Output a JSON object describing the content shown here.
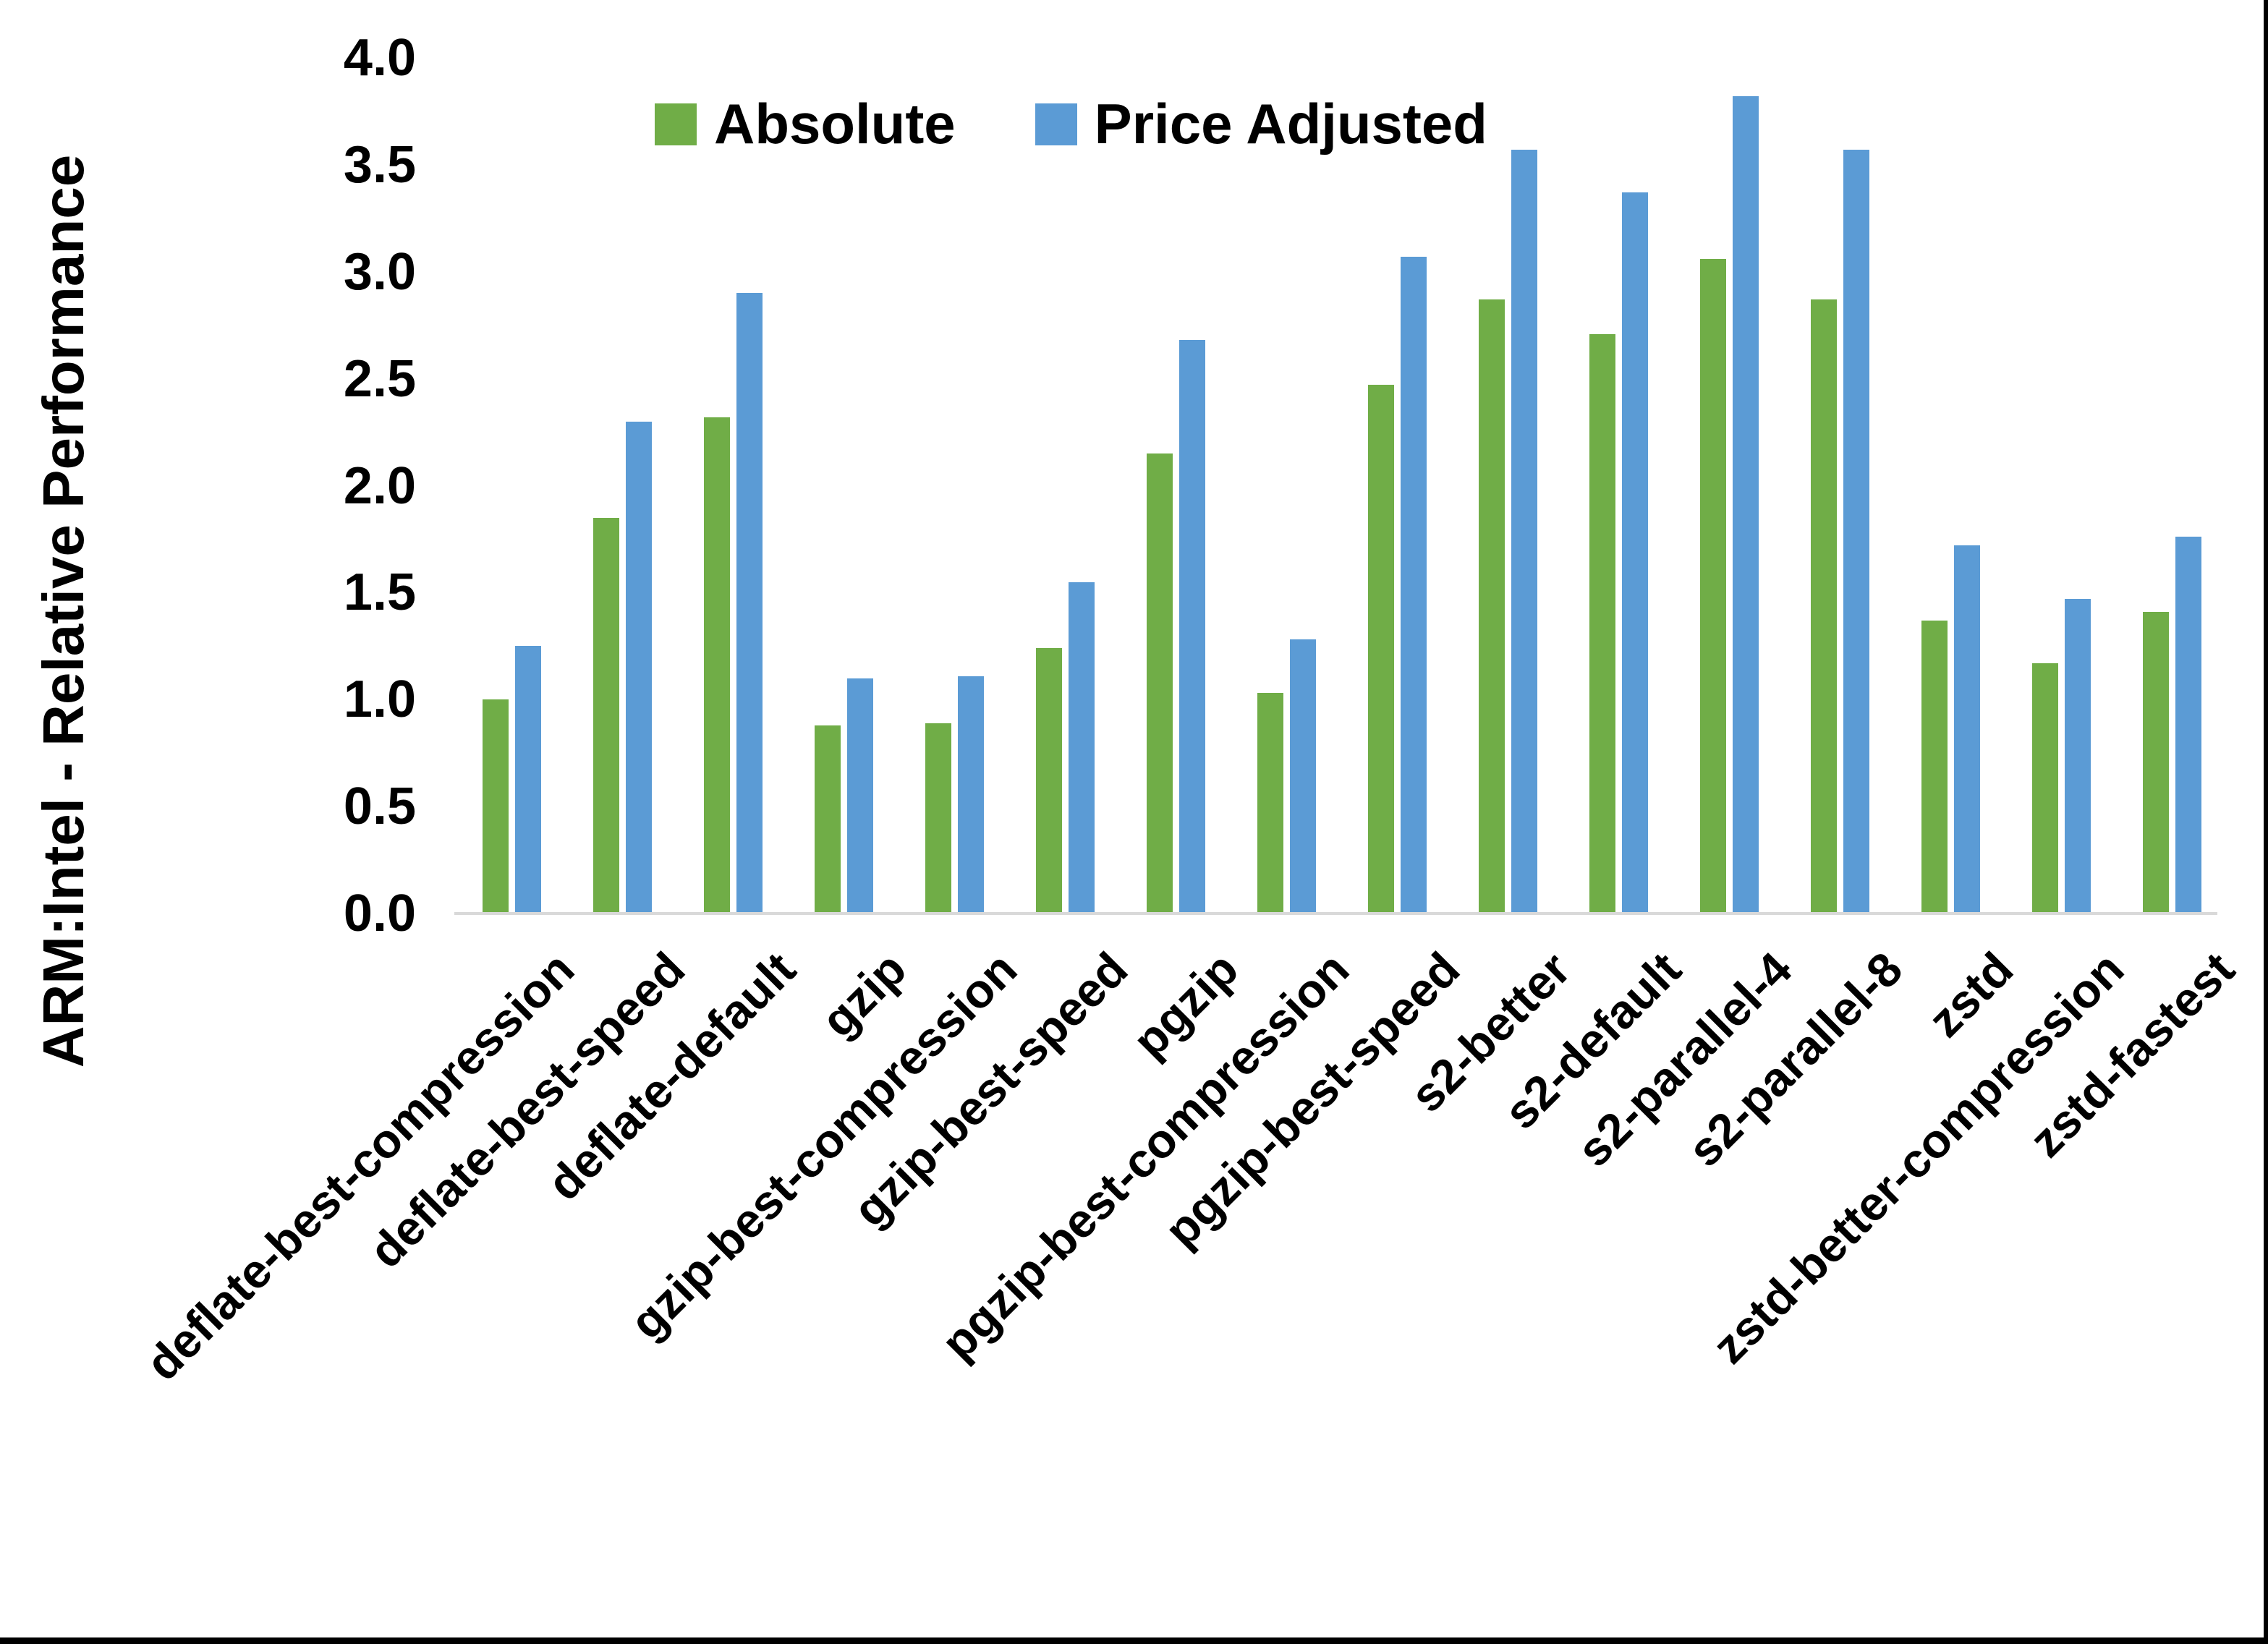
{
  "chart_data": {
    "type": "bar",
    "title": "",
    "ylabel": "ARM:Intel - Relative Performance",
    "xlabel": "",
    "ylim": [
      0.0,
      4.0
    ],
    "ytick_step": 0.5,
    "ytick_labels": [
      "0.0",
      "0.5",
      "1.0",
      "1.5",
      "2.0",
      "2.5",
      "3.0",
      "3.5",
      "4.0"
    ],
    "grid": false,
    "legend_position": "top-center",
    "categories": [
      "deflate-best-compression",
      "deflate-best-speed",
      "deflate-default",
      "gzip",
      "gzip-best-compression",
      "gzip-best-speed",
      "pgzip",
      "pgzip-best-compression",
      "pgzip-best-speed",
      "s2-better",
      "s2-default",
      "s2-parallel-4",
      "s2-parallel-8",
      "zstd",
      "zstd-better-compression",
      "zstd-fastest"
    ],
    "series": [
      {
        "name": "Absolute",
        "color": "#70AD47",
        "values": [
          1.0,
          1.85,
          2.32,
          0.88,
          0.89,
          1.24,
          2.15,
          1.03,
          2.47,
          2.87,
          2.71,
          3.06,
          2.87,
          1.37,
          1.17,
          1.41
        ]
      },
      {
        "name": "Price Adjusted",
        "color": "#5B9BD5",
        "values": [
          1.25,
          2.3,
          2.9,
          1.1,
          1.11,
          1.55,
          2.68,
          1.28,
          3.07,
          3.57,
          3.37,
          3.82,
          3.57,
          1.72,
          1.47,
          1.76
        ]
      }
    ]
  },
  "colors": {
    "background": "#FFFFFF",
    "text": "#000000",
    "axis_line": "#D9D9D9",
    "frame_border": "#000000"
  }
}
